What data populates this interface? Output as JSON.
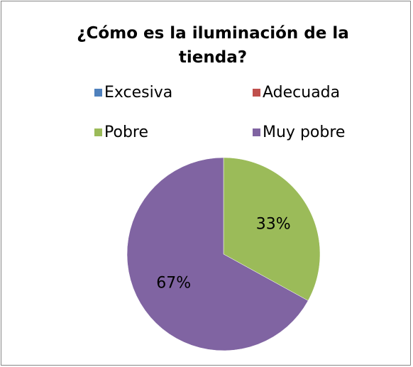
{
  "chart_data": {
    "type": "pie",
    "title": "¿Cómo es la iluminación de la tienda?",
    "categories": [
      "Excesiva",
      "Adecuada",
      "Pobre",
      "Muy pobre"
    ],
    "values": [
      0,
      0,
      33,
      67
    ],
    "value_labels": [
      null,
      null,
      "33%",
      "67%"
    ],
    "colors": [
      "#4f81bd",
      "#c0504d",
      "#9bbb59",
      "#8064a2"
    ],
    "legend": "top"
  }
}
